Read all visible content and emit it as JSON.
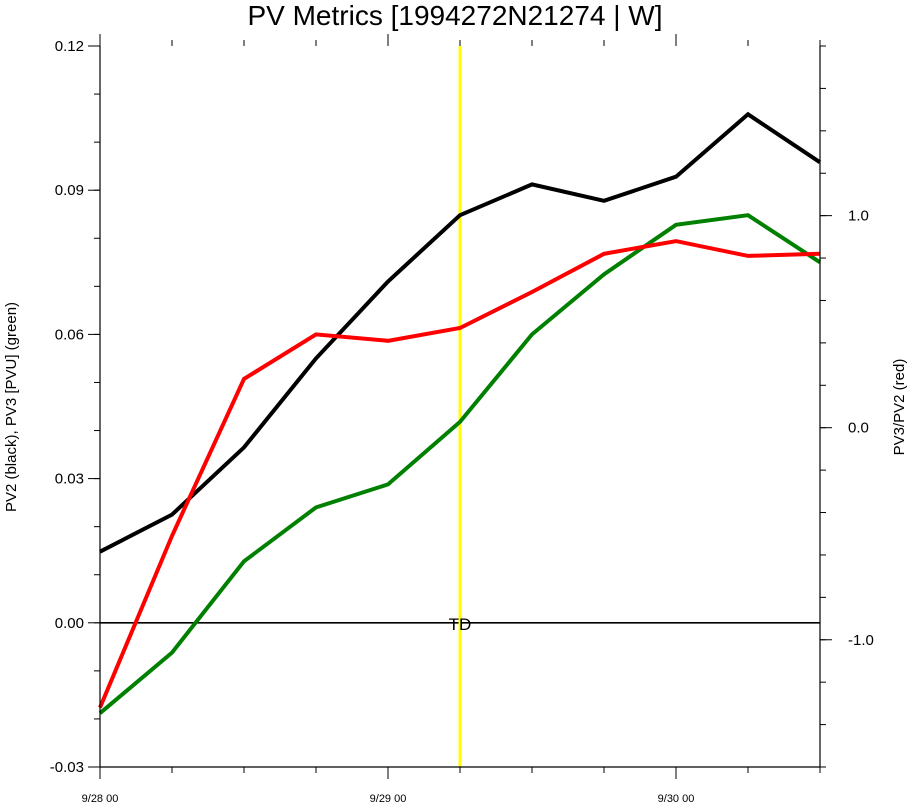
{
  "chart_data": {
    "type": "line",
    "title": "PV Metrics [1994272N21274 | W]",
    "ylabel_left": "PV2 (black), PV3 [PVU] (green)",
    "ylabel_right": "PV3/PV2 (red)",
    "x_tick_labels": [
      "9/28 00",
      "9/29 00",
      "9/30 00"
    ],
    "x_ticks": [
      0,
      24,
      48
    ],
    "xlim": [
      0,
      60
    ],
    "ylim_left": [
      -0.03,
      0.12
    ],
    "yticks_left": [
      -0.03,
      0.0,
      0.03,
      0.06,
      0.09,
      0.12
    ],
    "yticks_left_labels": [
      "-0.03",
      "0.00",
      "0.03",
      "0.06",
      "0.09",
      "0.12"
    ],
    "ylim_right": [
      -1.6,
      1.8
    ],
    "yticks_right": [
      -1.0,
      0.0,
      1.0
    ],
    "yticks_right_labels": [
      "-1.0",
      "0.0",
      "1.0"
    ],
    "x": [
      0,
      6,
      12,
      18,
      24,
      30,
      36,
      42,
      48,
      54,
      60
    ],
    "series": [
      {
        "name": "PV2",
        "axis": "left",
        "color": "#000000",
        "values": [
          0.0148,
          0.0225,
          0.0365,
          0.055,
          0.071,
          0.0848,
          0.0912,
          0.0878,
          0.0928,
          0.1058,
          0.0958
        ]
      },
      {
        "name": "PV3",
        "axis": "left",
        "color": "#008000",
        "values": [
          -0.0188,
          -0.0062,
          0.0128,
          0.024,
          0.0288,
          0.0418,
          0.06,
          0.0725,
          0.0828,
          0.0848,
          0.075
        ]
      },
      {
        "name": "PV3/PV2",
        "axis": "right",
        "color": "#ff0000",
        "values": [
          -1.32,
          -0.51,
          0.23,
          0.44,
          0.41,
          0.47,
          0.64,
          0.82,
          0.88,
          0.81,
          0.82
        ]
      }
    ],
    "reference_line": {
      "axis": "left",
      "y": 0.0,
      "color": "#000000"
    },
    "marker_line": {
      "x": 30,
      "color": "#ffff00",
      "label": "TD"
    }
  }
}
